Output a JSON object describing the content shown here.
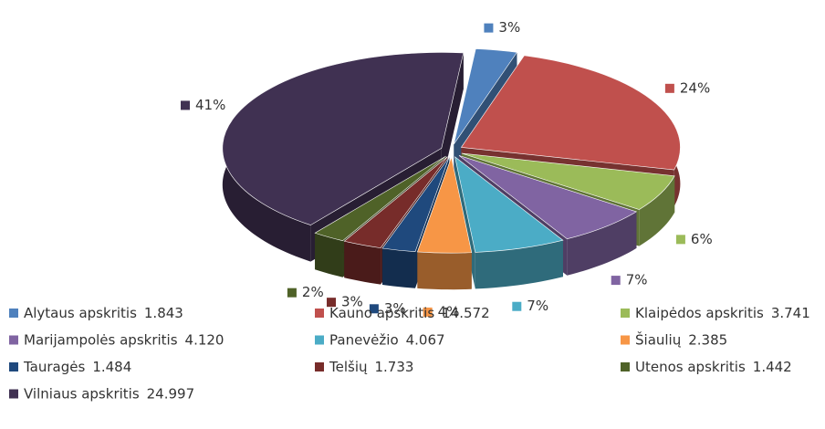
{
  "chart_data": {
    "type": "pie3d",
    "categories": [
      "Alytaus apskritis",
      "Kauno apskritis",
      "Klaipėdos apskritis",
      "Marijampolės apskritis",
      "Panevėžio",
      "Šiaulių",
      "Tauragės",
      "Telšių",
      "Utenos apskritis",
      "Vilniaus apskritis"
    ],
    "values": [
      1.843,
      14.572,
      3.741,
      4.12,
      4.067,
      2.385,
      1.484,
      1.733,
      1.442,
      24.997
    ],
    "value_labels": [
      "1.843",
      "14.572",
      "3.741",
      "4.120",
      "4.067",
      "2.385",
      "1.484",
      "1.733",
      "1.442",
      "24.997"
    ],
    "percent_labels": [
      "3%",
      "24%",
      "6%",
      "7%",
      "7%",
      "4%",
      "3%",
      "3%",
      "2%",
      "41%"
    ],
    "colors": [
      "#4f81bd",
      "#c0504d",
      "#9bbb59",
      "#8064a2",
      "#4bacc6",
      "#f79646",
      "#1f497d",
      "#772c2a",
      "#4f6228",
      "#403152"
    ],
    "legend": "bottom"
  }
}
